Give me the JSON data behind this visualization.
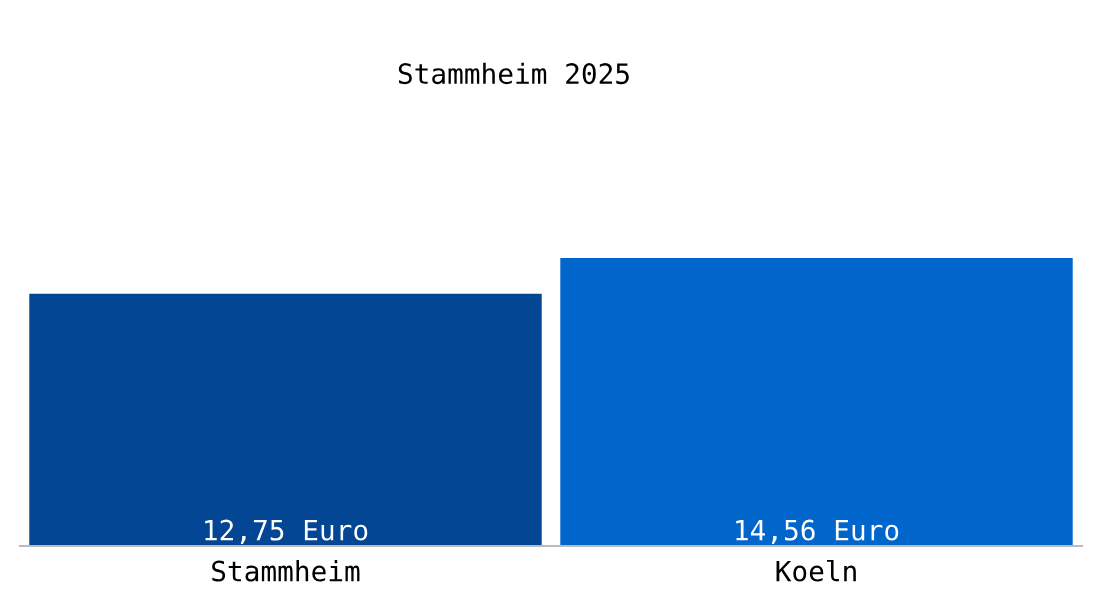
{
  "chart_data": {
    "type": "bar",
    "title": "Stammheim 2025",
    "categories": [
      "Stammheim",
      "Koeln"
    ],
    "values": [
      12.75,
      14.56
    ],
    "colors": [
      "#034694",
      "#0066cc"
    ],
    "value_labels": [
      "12,75 Euro",
      "14,56 Euro"
    ],
    "grid": false,
    "legend": false
  }
}
